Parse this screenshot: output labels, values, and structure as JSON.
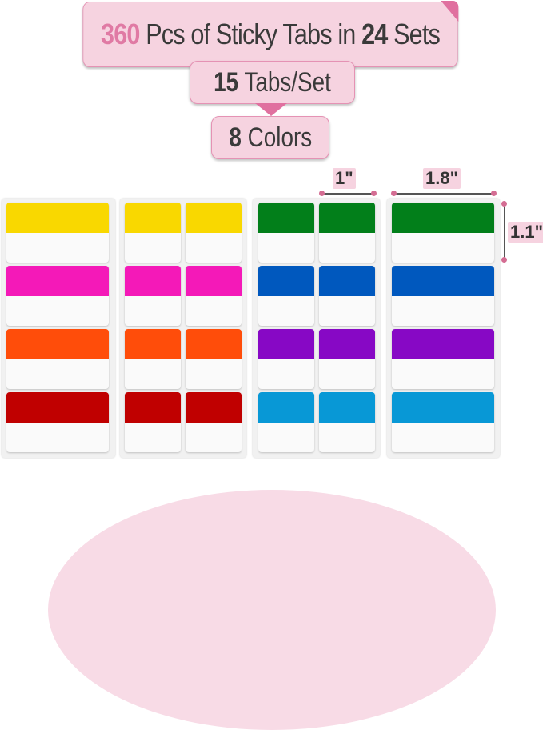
{
  "headline": {
    "count": "360",
    "middle": "Pcs of Sticky Tabs in",
    "sets": "24",
    "end": "Sets"
  },
  "tabs_per_set": {
    "count": "15",
    "label": "Tabs/Set"
  },
  "colors_count": {
    "count": "8",
    "label": "Colors"
  },
  "dimensions": {
    "small_width": "1\"",
    "large_width": "1.8\"",
    "height": "1.1\""
  },
  "colors": {
    "accent": "#e0709f",
    "tabs_left": [
      "#f9d800",
      "#f419b8",
      "#ff4d0a",
      "#c00000"
    ],
    "tabs_right": [
      "#027f1a",
      "#0058be",
      "#8708c5",
      "#0898d6"
    ]
  }
}
